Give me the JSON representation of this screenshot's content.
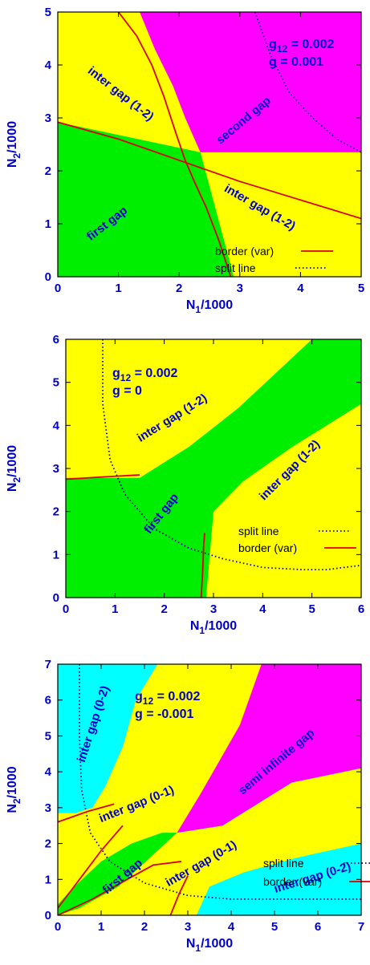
{
  "colors": {
    "yellow": "#ffff00",
    "green": "#00ee00",
    "magenta": "#ff00ff",
    "cyan": "#00ffff",
    "border": "#dd0000",
    "split": "#000080",
    "text": "#0000cc"
  },
  "chart_data": [
    {
      "type": "area",
      "panel": "top",
      "xlabel": "N1/1000",
      "ylabel": "N2/1000",
      "xlim": [
        0,
        5
      ],
      "ylim": [
        0,
        5
      ],
      "xticks": [
        "0",
        "1",
        "2",
        "3",
        "4",
        "5"
      ],
      "yticks": [
        "0",
        "1",
        "2",
        "3",
        "4",
        "5"
      ],
      "params": [
        "g12 = 0.002",
        "g = 0.001"
      ],
      "background": "yellow",
      "regions": [
        {
          "name": "second gap",
          "color": "magenta",
          "polygon": [
            [
              1.35,
              5
            ],
            [
              1.6,
              4.3
            ],
            [
              1.9,
              3.6
            ],
            [
              2.1,
              3.0
            ],
            [
              2.35,
              2.35
            ],
            [
              5,
              2.35
            ],
            [
              5,
              5
            ]
          ]
        },
        {
          "name": "first gap",
          "color": "green",
          "polygon": [
            [
              0,
              0
            ],
            [
              0,
              2.92
            ],
            [
              2.35,
              2.35
            ],
            [
              2.9,
              0
            ]
          ]
        }
      ],
      "labels": [
        {
          "text": "inter gap (1-2)",
          "x": 1.0,
          "y": 3.4,
          "angle": 38
        },
        {
          "text": "second gap",
          "x": 3.1,
          "y": 2.9,
          "angle": -40
        },
        {
          "text": "inter gap (1-2)",
          "x": 3.3,
          "y": 1.25,
          "angle": 30
        },
        {
          "text": "first gap",
          "x": 0.85,
          "y": 0.95,
          "angle": -38
        }
      ],
      "series": [
        {
          "name": "border (var)",
          "style": "solid",
          "points": [
            [
              1.0,
              5
            ],
            [
              1.3,
              4.55
            ],
            [
              1.55,
              4.0
            ],
            [
              1.75,
              3.4
            ],
            [
              1.95,
              2.7
            ],
            [
              2.1,
              2.2
            ],
            [
              2.25,
              1.8
            ],
            [
              2.45,
              1.3
            ],
            [
              2.65,
              0.7
            ],
            [
              2.85,
              0
            ]
          ]
        },
        {
          "name": "",
          "style": "solid",
          "points": [
            [
              0,
              2.92
            ],
            [
              1.0,
              2.6
            ],
            [
              2.0,
              2.2
            ],
            [
              3.0,
              1.8
            ],
            [
              4.0,
              1.45
            ],
            [
              5,
              1.1
            ]
          ]
        },
        {
          "name": "split line",
          "style": "dotted",
          "points": [
            [
              3.25,
              5
            ],
            [
              3.5,
              4.2
            ],
            [
              3.8,
              3.5
            ],
            [
              4.2,
              3.0
            ],
            [
              4.6,
              2.6
            ],
            [
              5,
              2.35
            ]
          ]
        }
      ]
    },
    {
      "type": "area",
      "panel": "middle",
      "xlabel": "N1/1000",
      "ylabel": "N2/1000",
      "xlim": [
        0,
        6
      ],
      "ylim": [
        0,
        6
      ],
      "xticks": [
        "0",
        "1",
        "2",
        "3",
        "4",
        "5",
        "6"
      ],
      "yticks": [
        "0",
        "1",
        "2",
        "3",
        "4",
        "5",
        "6"
      ],
      "params": [
        "g12 = 0.002",
        "g = 0"
      ],
      "background": "yellow",
      "regions": [
        {
          "name": "first gap",
          "color": "green",
          "polygon": [
            [
              0,
              0
            ],
            [
              0,
              2.78
            ],
            [
              1.5,
              2.78
            ],
            [
              2.5,
              3.5
            ],
            [
              3.5,
              4.4
            ],
            [
              5.0,
              6
            ],
            [
              6,
              6
            ],
            [
              6,
              4.5
            ],
            [
              4.6,
              3.5
            ],
            [
              3.6,
              2.7
            ],
            [
              3.0,
              2.0
            ],
            [
              2.85,
              0
            ]
          ]
        }
      ],
      "labels": [
        {
          "text": "inter gap (1-2)",
          "x": 2.2,
          "y": 4.1,
          "angle": -32
        },
        {
          "text": "inter gap (1-2)",
          "x": 4.6,
          "y": 2.9,
          "angle": -45
        },
        {
          "text": "first gap",
          "x": 2.0,
          "y": 1.9,
          "angle": -52
        }
      ],
      "series": [
        {
          "name": "split line",
          "style": "dotted",
          "points": [
            [
              0.75,
              6
            ],
            [
              0.75,
              4.5
            ],
            [
              0.9,
              3.2
            ],
            [
              1.2,
              2.4
            ],
            [
              1.8,
              1.6
            ],
            [
              2.5,
              1.15
            ],
            [
              3.2,
              0.9
            ],
            [
              4.0,
              0.7
            ],
            [
              4.8,
              0.65
            ],
            [
              5.3,
              0.65
            ],
            [
              6,
              0.75
            ]
          ]
        },
        {
          "name": "border (var)",
          "style": "solid",
          "points": [
            [
              2.75,
              0
            ],
            [
              2.78,
              0.6
            ],
            [
              2.8,
              1.2
            ],
            [
              2.82,
              1.5
            ]
          ]
        },
        {
          "name": "",
          "style": "solid",
          "points": [
            [
              0,
              2.75
            ],
            [
              0.7,
              2.8
            ],
            [
              1.5,
              2.85
            ]
          ]
        }
      ]
    },
    {
      "type": "area",
      "panel": "bottom",
      "xlabel": "N1/1000",
      "ylabel": "N2/1000",
      "xlim": [
        0,
        7
      ],
      "ylim": [
        0,
        7
      ],
      "xticks": [
        "0",
        "1",
        "2",
        "3",
        "4",
        "5",
        "6",
        "7"
      ],
      "yticks": [
        "0",
        "1",
        "2",
        "3",
        "4",
        "5",
        "6",
        "7"
      ],
      "params": [
        "g12 = 0.002",
        "g = -0.001"
      ],
      "background": "yellow",
      "regions": [
        {
          "name": "inter gap (0-2)",
          "color": "cyan",
          "polygon": [
            [
              0,
              2.85
            ],
            [
              0,
              7
            ],
            [
              2.3,
              7
            ],
            [
              1.8,
              6.0
            ],
            [
              1.5,
              4.7
            ],
            [
              1.1,
              3.6
            ],
            [
              0.8,
              3.0
            ],
            [
              0.4,
              2.85
            ]
          ]
        },
        {
          "name": "semi infinite gap",
          "color": "magenta",
          "polygon": [
            [
              4.7,
              7
            ],
            [
              7,
              7
            ],
            [
              7,
              4.1
            ],
            [
              5.4,
              3.7
            ],
            [
              4.6,
              3.1
            ],
            [
              3.8,
              2.5
            ],
            [
              2.75,
              2.3
            ],
            [
              3.3,
              3.4
            ],
            [
              4.2,
              5.3
            ]
          ]
        },
        {
          "name": "first gap",
          "color": "green",
          "polygon": [
            [
              0,
              0
            ],
            [
              0.5,
              0.2
            ],
            [
              1.4,
              0.8
            ],
            [
              2.3,
              1.8
            ],
            [
              2.75,
              2.3
            ],
            [
              2.4,
              2.3
            ],
            [
              1.7,
              2.0
            ],
            [
              1.0,
              1.5
            ],
            [
              0.3,
              0.7
            ],
            [
              0,
              0.3
            ]
          ]
        },
        {
          "name": "inter gap (0-2)",
          "color": "cyan",
          "polygon": [
            [
              3.2,
              0
            ],
            [
              7,
              0
            ],
            [
              7,
              2.0
            ],
            [
              5.5,
              1.6
            ],
            [
              4.3,
              1.2
            ],
            [
              3.5,
              0.8
            ]
          ]
        }
      ],
      "labels": [
        {
          "text": "inter gap (0-2)",
          "x": 0.9,
          "y": 5.3,
          "angle": -72
        },
        {
          "text": "semi infinite gap",
          "x": 5.1,
          "y": 4.2,
          "angle": -40
        },
        {
          "text": "inter gap (0-1)",
          "x": 1.85,
          "y": 3.0,
          "angle": -22
        },
        {
          "text": "inter gap (0-1)",
          "x": 3.35,
          "y": 1.35,
          "angle": -30
        },
        {
          "text": "first gap",
          "x": 1.55,
          "y": 1.0,
          "angle": -40
        },
        {
          "text": "inter gap (0-2)",
          "x": 5.9,
          "y": 0.95,
          "angle": -17
        }
      ],
      "series": [
        {
          "name": "split line",
          "style": "dotted",
          "points": [
            [
              0.5,
              7
            ],
            [
              0.5,
              5.0
            ],
            [
              0.55,
              3.5
            ],
            [
              0.75,
              2.3
            ],
            [
              1.2,
              1.5
            ],
            [
              2.0,
              0.9
            ],
            [
              3.0,
              0.55
            ],
            [
              4.0,
              0.45
            ],
            [
              5.5,
              0.45
            ],
            [
              7,
              0.45
            ]
          ]
        },
        {
          "name": "border (var)",
          "style": "solid",
          "points": [
            [
              0,
              2.6
            ],
            [
              0.7,
              2.9
            ],
            [
              1.3,
              3.1
            ]
          ]
        },
        {
          "name": "",
          "style": "solid",
          "points": [
            [
              0,
              0.2
            ],
            [
              0.5,
              1.0
            ],
            [
              1.0,
              1.8
            ],
            [
              1.5,
              2.5
            ]
          ]
        },
        {
          "name": "",
          "style": "solid",
          "points": [
            [
              0,
              0
            ],
            [
              0.8,
              0.45
            ],
            [
              1.6,
              1.0
            ],
            [
              2.2,
              1.4
            ],
            [
              2.85,
              1.5
            ]
          ]
        },
        {
          "name": "",
          "style": "solid",
          "points": [
            [
              2.6,
              0
            ],
            [
              2.8,
              0.6
            ],
            [
              3.0,
              1.1
            ]
          ]
        }
      ]
    }
  ]
}
